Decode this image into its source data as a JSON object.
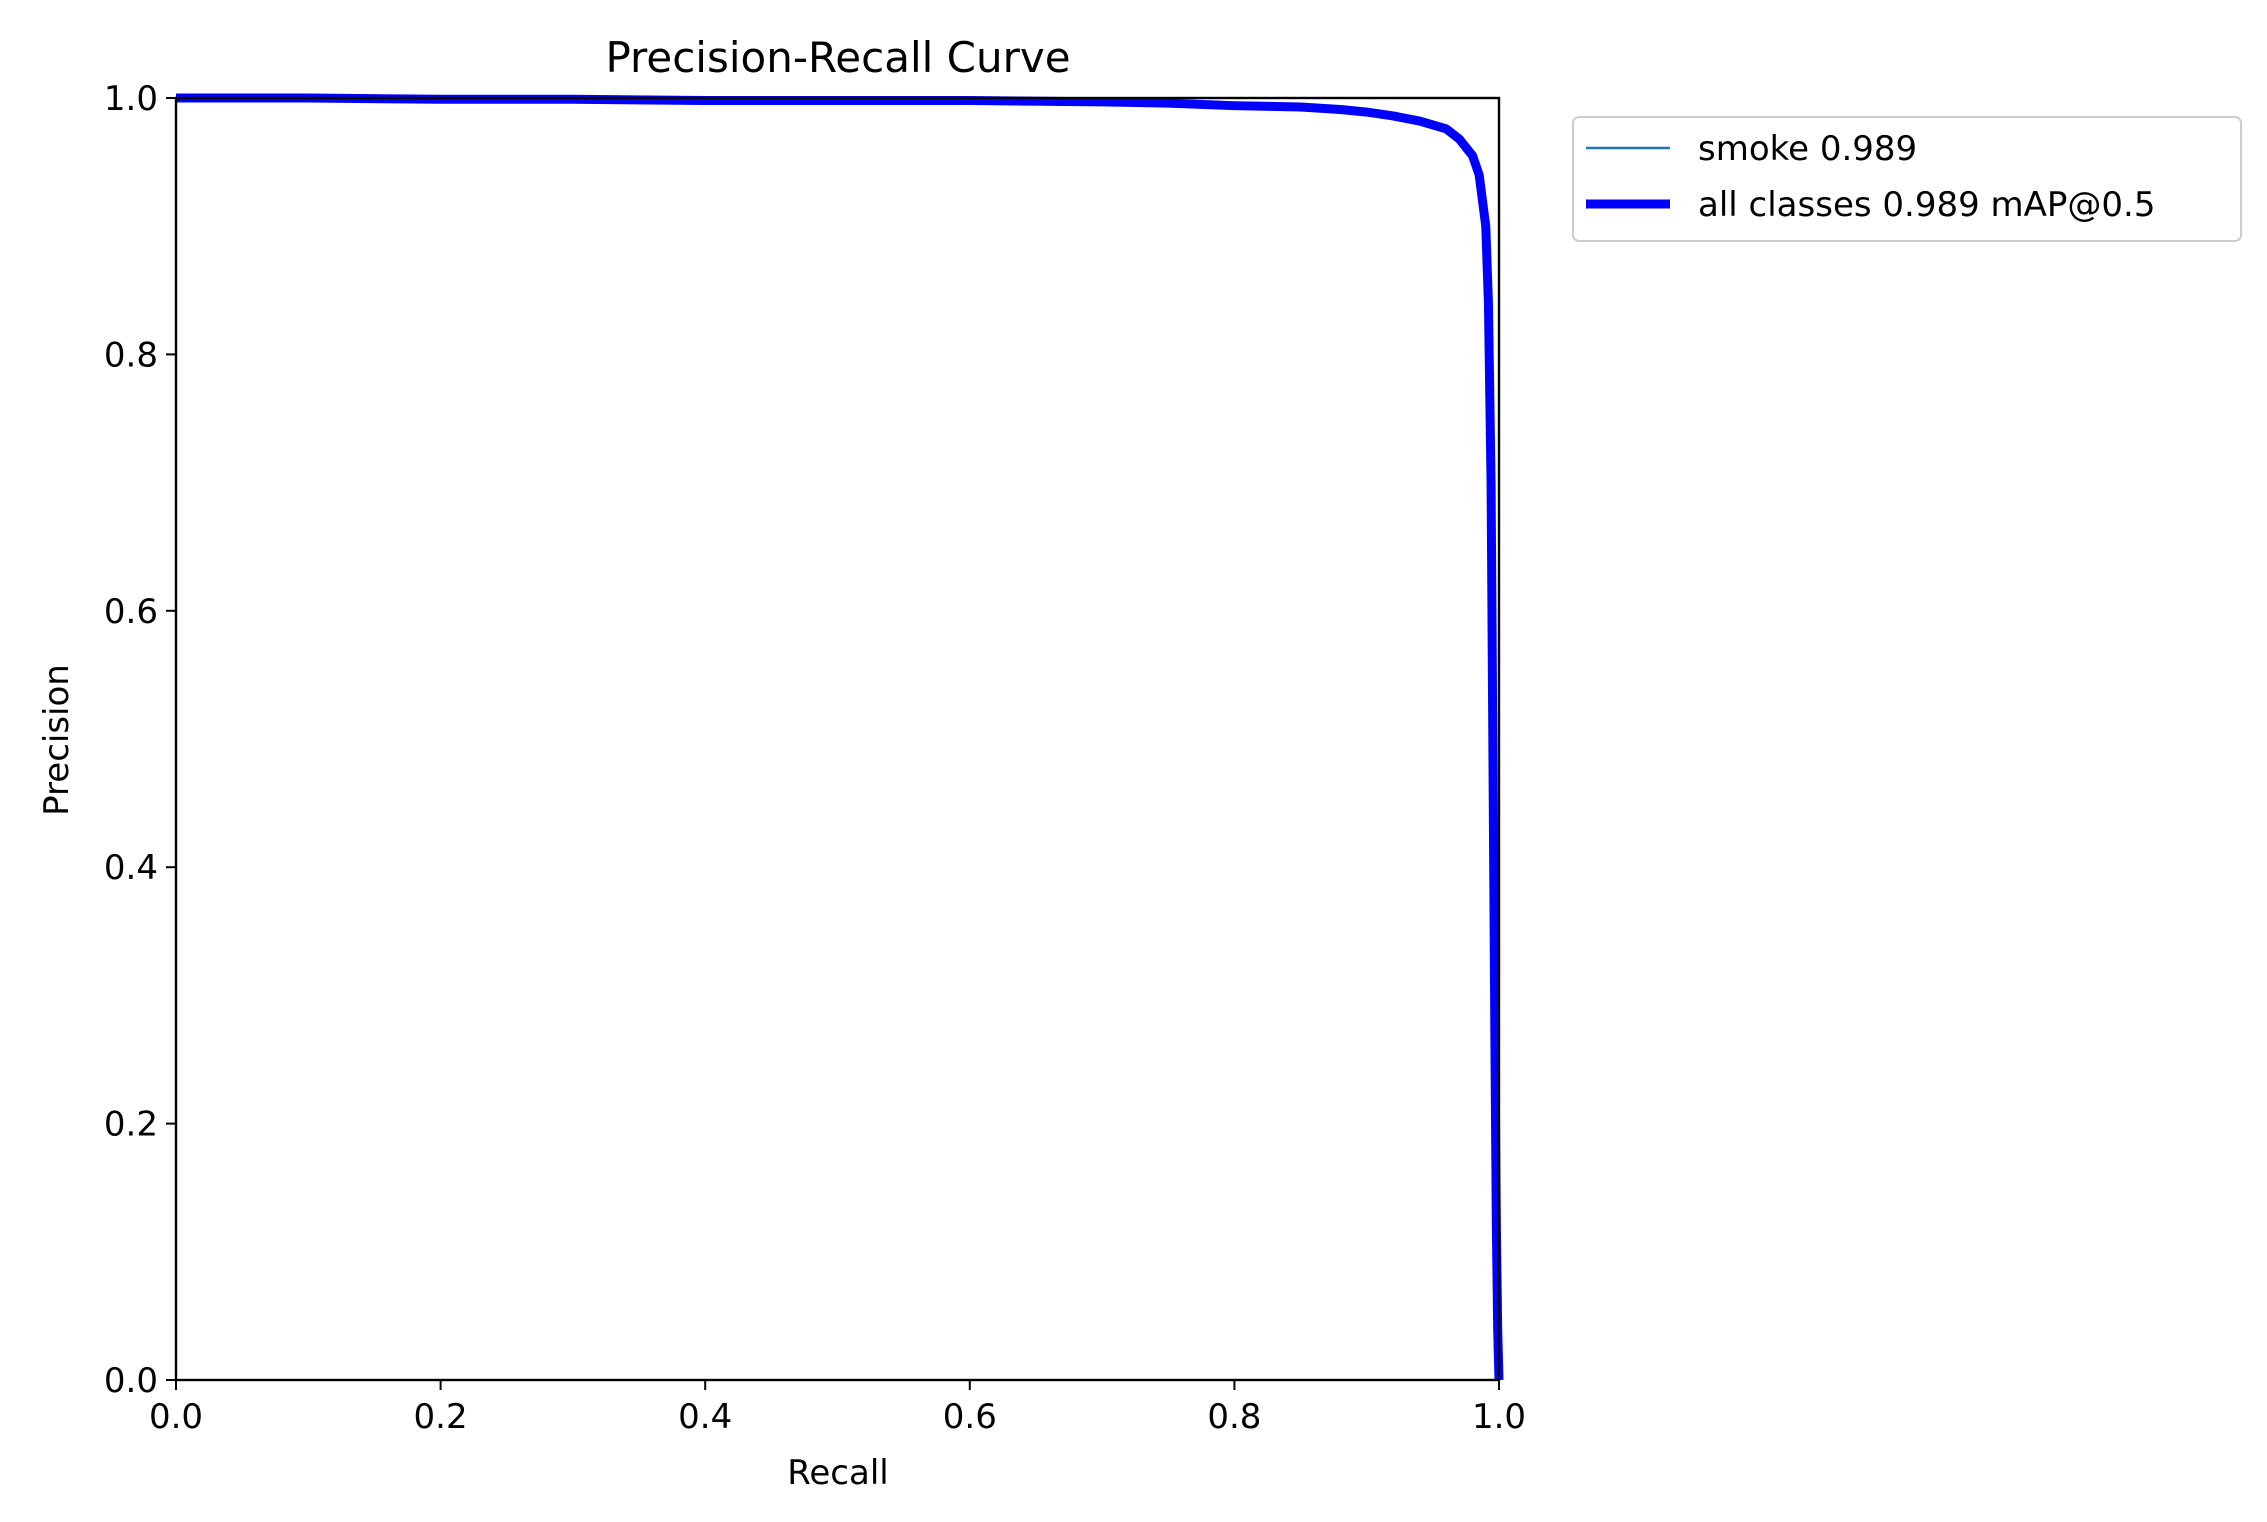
{
  "chart_data": {
    "type": "line",
    "title": "Precision-Recall Curve",
    "xlabel": "Recall",
    "ylabel": "Precision",
    "xlim": [
      0.0,
      1.0
    ],
    "ylim": [
      0.0,
      1.0
    ],
    "x_ticks": [
      "0.0",
      "0.2",
      "0.4",
      "0.6",
      "0.8",
      "1.0"
    ],
    "y_ticks": [
      "0.0",
      "0.2",
      "0.4",
      "0.6",
      "0.8",
      "1.0"
    ],
    "grid": false,
    "legend_position": "outside-top-right",
    "series": [
      {
        "name": "smoke 0.989",
        "color": "#1f77b4",
        "style": "thin",
        "x": [
          0.0,
          0.05,
          0.1,
          0.2,
          0.3,
          0.4,
          0.5,
          0.6,
          0.7,
          0.75,
          0.8,
          0.85,
          0.88,
          0.9,
          0.92,
          0.94,
          0.96,
          0.97,
          0.98,
          0.985,
          0.99,
          0.992,
          0.994,
          0.995,
          0.996,
          0.997,
          0.998,
          0.999,
          1.0
        ],
        "y": [
          1.0,
          1.0,
          1.0,
          0.999,
          0.999,
          0.998,
          0.998,
          0.998,
          0.997,
          0.996,
          0.994,
          0.993,
          0.991,
          0.989,
          0.986,
          0.982,
          0.976,
          0.968,
          0.955,
          0.94,
          0.9,
          0.84,
          0.7,
          0.55,
          0.4,
          0.25,
          0.12,
          0.04,
          0.0
        ]
      },
      {
        "name": "all classes 0.989 mAP@0.5",
        "color": "#0000ff",
        "style": "thick",
        "x": [
          0.0,
          0.05,
          0.1,
          0.2,
          0.3,
          0.4,
          0.5,
          0.6,
          0.7,
          0.75,
          0.8,
          0.85,
          0.88,
          0.9,
          0.92,
          0.94,
          0.96,
          0.97,
          0.98,
          0.985,
          0.99,
          0.992,
          0.994,
          0.995,
          0.996,
          0.997,
          0.998,
          0.999,
          1.0
        ],
        "y": [
          1.0,
          1.0,
          1.0,
          0.999,
          0.999,
          0.998,
          0.998,
          0.998,
          0.997,
          0.996,
          0.994,
          0.993,
          0.991,
          0.989,
          0.986,
          0.982,
          0.976,
          0.968,
          0.955,
          0.94,
          0.9,
          0.84,
          0.7,
          0.55,
          0.4,
          0.25,
          0.12,
          0.04,
          0.0
        ]
      }
    ]
  }
}
